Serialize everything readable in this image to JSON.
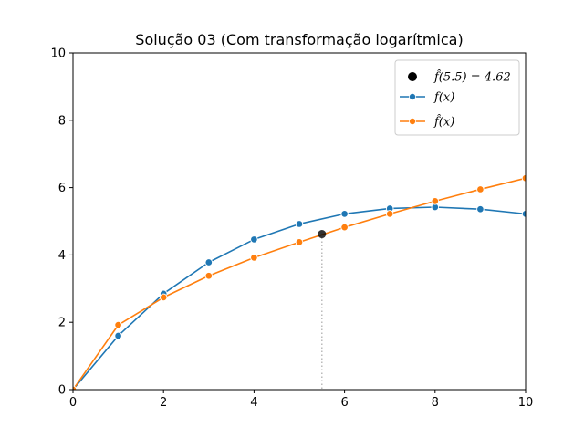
{
  "chart_data": {
    "type": "line",
    "title": "Solução 03 (Com transformação logarítmica)",
    "xlabel": "",
    "ylabel": "",
    "xlim": [
      0,
      10
    ],
    "ylim": [
      0,
      10
    ],
    "xticks": [
      0,
      2,
      4,
      6,
      8,
      10
    ],
    "yticks": [
      0,
      2,
      4,
      6,
      8,
      10
    ],
    "grid": false,
    "legend_position": "top-right",
    "series": [
      {
        "name": "f(x)",
        "color": "#1f77b4",
        "x": [
          0,
          1,
          2,
          3,
          4,
          5,
          6,
          7,
          8,
          9,
          10
        ],
        "y": [
          0,
          1.6,
          2.85,
          3.78,
          4.46,
          4.92,
          5.22,
          5.38,
          5.42,
          5.36,
          5.22
        ]
      },
      {
        "name": "f̂(x)",
        "color": "#ff7f0e",
        "x": [
          0,
          1,
          2,
          3,
          4,
          5,
          6,
          7,
          8,
          9,
          10
        ],
        "y": [
          0,
          1.92,
          2.74,
          3.38,
          3.92,
          4.38,
          4.82,
          5.22,
          5.6,
          5.95,
          6.28
        ]
      }
    ],
    "highlight_point": {
      "label": "f̂(5.5) = 4.62",
      "x": 5.5,
      "y": 4.62,
      "color": "#000000"
    }
  }
}
